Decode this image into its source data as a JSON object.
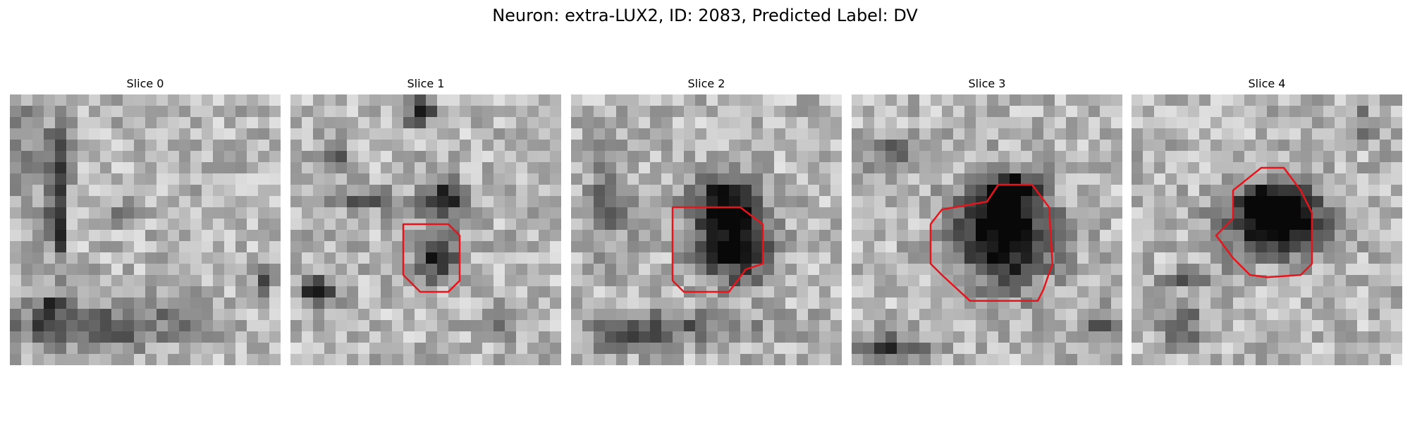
{
  "figure": {
    "title": "Neuron: extra-LUX2, ID: 2083, Predicted Label: DV"
  },
  "panels": [
    {
      "title": "Slice 0",
      "image": "grayscale microscopy patch",
      "has_contour": false
    },
    {
      "title": "Slice 1",
      "image": "grayscale microscopy patch",
      "has_contour": true
    },
    {
      "title": "Slice 2",
      "image": "grayscale microscopy patch",
      "has_contour": true
    },
    {
      "title": "Slice 3",
      "image": "grayscale microscopy patch",
      "has_contour": true
    },
    {
      "title": "Slice 4",
      "image": "grayscale microscopy patch",
      "has_contour": true
    }
  ],
  "colors": {
    "contour": "#e8141b",
    "background": "#ffffff"
  }
}
